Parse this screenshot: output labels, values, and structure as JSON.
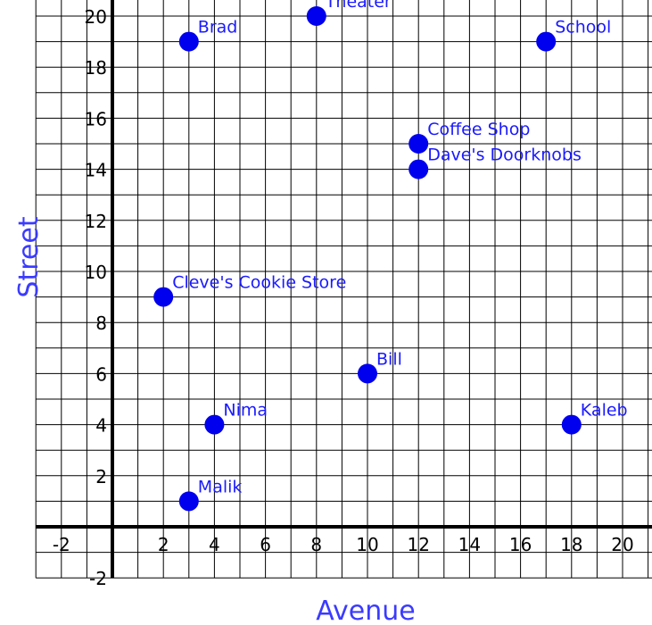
{
  "chart_data": {
    "type": "scatter",
    "xlabel": "Avenue",
    "ylabel": "Street",
    "xlim": [
      -3,
      21
    ],
    "ylim": [
      -2,
      21
    ],
    "grid": true,
    "x_ticks": [
      -2,
      2,
      4,
      6,
      8,
      10,
      12,
      14,
      16,
      18,
      20
    ],
    "y_ticks": [
      -2,
      2,
      4,
      6,
      8,
      10,
      12,
      14,
      16,
      18,
      20
    ],
    "point_color": "#0000ee",
    "label_color": "#1a1aff",
    "axis_title_color": "#3b3bff",
    "points": [
      {
        "label": "Brad",
        "x": 3,
        "y": 19
      },
      {
        "label": "Theater",
        "x": 8,
        "y": 20
      },
      {
        "label": "School",
        "x": 17,
        "y": 19
      },
      {
        "label": "Coffee Shop",
        "x": 12,
        "y": 15
      },
      {
        "label": "Dave's Doorknobs",
        "x": 12,
        "y": 14
      },
      {
        "label": "Cleve's Cookie Store",
        "x": 2,
        "y": 9
      },
      {
        "label": "Bill",
        "x": 10,
        "y": 6
      },
      {
        "label": "Nima",
        "x": 4,
        "y": 4
      },
      {
        "label": "Kaleb",
        "x": 18,
        "y": 4
      },
      {
        "label": "Malik",
        "x": 3,
        "y": 1
      }
    ]
  }
}
